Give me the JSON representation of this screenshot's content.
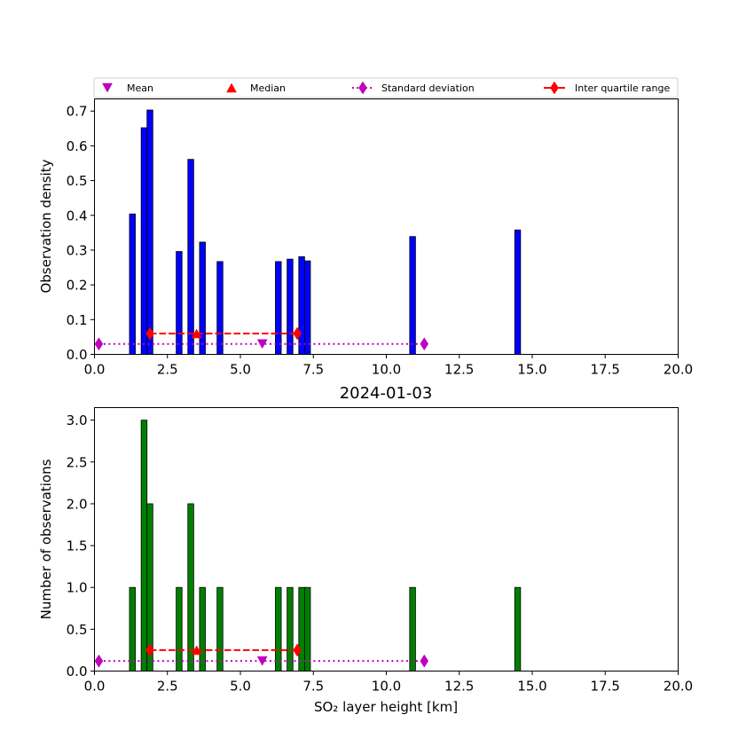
{
  "legend": {
    "entries": [
      {
        "label": "Mean",
        "marker": "triangle-down",
        "color": "#bf00bf",
        "line": "none"
      },
      {
        "label": "Median",
        "marker": "triangle-up",
        "color": "#ff0000",
        "line": "none"
      },
      {
        "label": "Standard deviation",
        "marker": "diamond",
        "color": "#bf00bf",
        "line": "dotted"
      },
      {
        "label": "Inter quartile range",
        "marker": "diamond",
        "color": "#ff0000",
        "line": "solid"
      }
    ],
    "placement": "top, above upper panel"
  },
  "chart_data": [
    {
      "type": "bar",
      "title": "",
      "xlabel": "",
      "ylabel": "Observation density",
      "xlim": [
        0,
        20
      ],
      "ylim": [
        0,
        0.735
      ],
      "xticks": [
        "0.0",
        "2.5",
        "5.0",
        "7.5",
        "10.0",
        "12.5",
        "15.0",
        "17.5",
        "20.0"
      ],
      "yticks": [
        "0.0",
        "0.1",
        "0.2",
        "0.3",
        "0.4",
        "0.5",
        "0.6",
        "0.7"
      ],
      "bar_color": "#0000ff",
      "bar_width": 0.2,
      "x": [
        1.3,
        1.7,
        1.9,
        2.9,
        3.3,
        3.7,
        4.3,
        6.3,
        6.7,
        7.1,
        7.3,
        10.9,
        14.5
      ],
      "values": [
        0.404,
        0.652,
        0.703,
        0.296,
        0.561,
        0.323,
        0.267,
        0.267,
        0.274,
        0.281,
        0.269,
        0.339,
        0.358
      ],
      "stats": {
        "mean": 5.75,
        "median": 3.5,
        "std_range": [
          0.15,
          11.3
        ],
        "iqr_range": [
          1.9,
          6.95
        ],
        "std_level": 0.03,
        "iqr_level": 0.06
      }
    },
    {
      "type": "bar",
      "title": "2024-01-03",
      "xlabel": "SO₂ layer height [km]",
      "ylabel": "Number of observations",
      "xlim": [
        0,
        20
      ],
      "ylim": [
        0,
        3.15
      ],
      "xticks": [
        "0.0",
        "2.5",
        "5.0",
        "7.5",
        "10.0",
        "12.5",
        "15.0",
        "17.5",
        "20.0"
      ],
      "yticks": [
        "0.0",
        "0.5",
        "1.0",
        "1.5",
        "2.0",
        "2.5",
        "3.0"
      ],
      "bar_color": "#008000",
      "bar_width": 0.2,
      "x": [
        1.3,
        1.7,
        1.9,
        2.9,
        3.3,
        3.7,
        4.3,
        6.3,
        6.7,
        7.1,
        7.3,
        10.9,
        14.5
      ],
      "values": [
        1,
        3,
        2,
        1,
        2,
        1,
        1,
        1,
        1,
        1,
        1,
        1,
        1
      ],
      "stats": {
        "mean": 5.75,
        "median": 3.5,
        "std_range": [
          0.15,
          11.3
        ],
        "iqr_range": [
          1.9,
          6.95
        ],
        "std_level": 0.12,
        "iqr_level": 0.25
      }
    }
  ]
}
